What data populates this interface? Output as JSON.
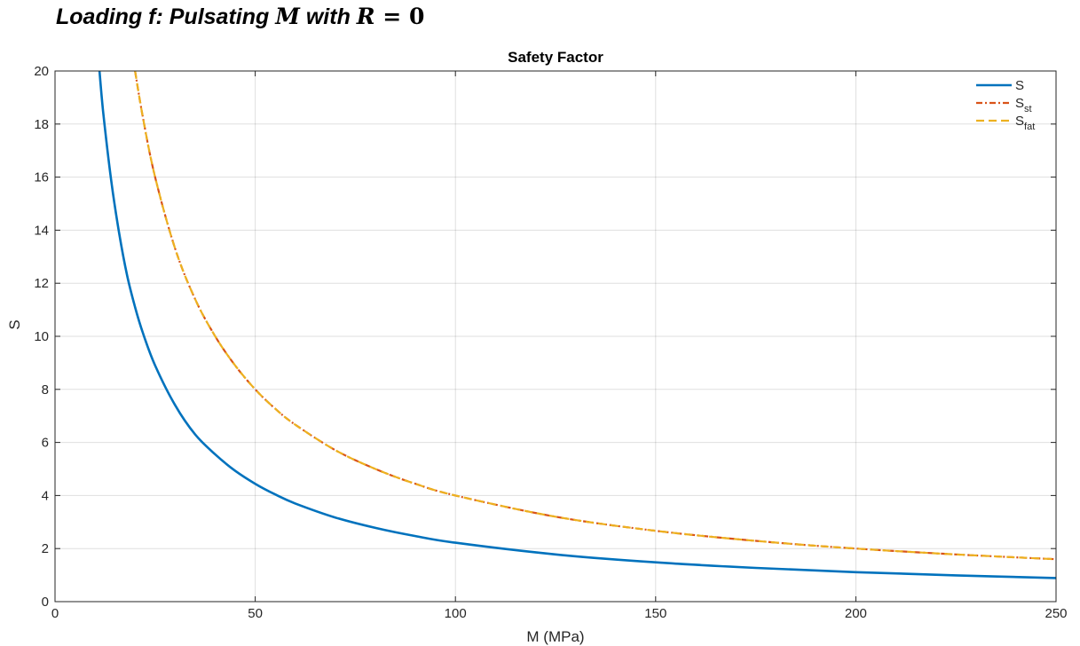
{
  "heading": {
    "prefix": "Loading f: Pulsating ",
    "var_m": "M",
    "middle": " with ",
    "var_r": "R",
    "equals": " = ",
    "value": "0"
  },
  "chart_data": {
    "type": "line",
    "title": "Safety Factor",
    "xlabel": "M (MPa)",
    "ylabel": "S",
    "xlim": [
      0,
      250
    ],
    "ylim": [
      0,
      20
    ],
    "xticks": [
      0,
      50,
      100,
      150,
      200,
      250
    ],
    "yticks": [
      0,
      2,
      4,
      6,
      8,
      10,
      12,
      14,
      16,
      18,
      20
    ],
    "grid": true,
    "legend_position": "top-right",
    "series": [
      {
        "name": "S",
        "name_base": "S",
        "name_sub": "",
        "color": "#0072BD",
        "style": "solid",
        "x": [
          11,
          12,
          14,
          16,
          18,
          20,
          22,
          25,
          30,
          35,
          40,
          45,
          50,
          55,
          60,
          70,
          80,
          90,
          100,
          125,
          150,
          175,
          200,
          225,
          250
        ],
        "y": [
          20.2,
          18.5,
          15.9,
          13.9,
          12.3,
          11.1,
          10.1,
          8.9,
          7.4,
          6.3,
          5.55,
          4.93,
          4.44,
          4.04,
          3.7,
          3.17,
          2.78,
          2.47,
          2.22,
          1.78,
          1.48,
          1.27,
          1.11,
          0.99,
          0.89
        ]
      },
      {
        "name": "S_st",
        "name_base": "S",
        "name_sub": "st",
        "color": "#D95319",
        "style": "dashdot",
        "x": [
          20,
          22,
          25,
          30,
          35,
          40,
          45,
          50,
          55,
          60,
          70,
          80,
          90,
          100,
          125,
          150,
          175,
          200,
          225,
          250
        ],
        "y": [
          20,
          18.2,
          16,
          13.3,
          11.4,
          10,
          8.9,
          8,
          7.27,
          6.67,
          5.71,
          5,
          4.44,
          4,
          3.2,
          2.67,
          2.29,
          2,
          1.78,
          1.6
        ]
      },
      {
        "name": "S_fat",
        "name_base": "S",
        "name_sub": "fat",
        "color": "#EDB120",
        "style": "dashed",
        "x": [
          20,
          22,
          25,
          30,
          35,
          40,
          45,
          50,
          55,
          60,
          70,
          80,
          90,
          100,
          125,
          150,
          175,
          200,
          225,
          250
        ],
        "y": [
          20,
          18.2,
          16,
          13.3,
          11.4,
          10,
          8.9,
          8,
          7.27,
          6.67,
          5.71,
          5,
          4.44,
          4,
          3.2,
          2.67,
          2.29,
          2,
          1.78,
          1.6
        ]
      }
    ]
  }
}
